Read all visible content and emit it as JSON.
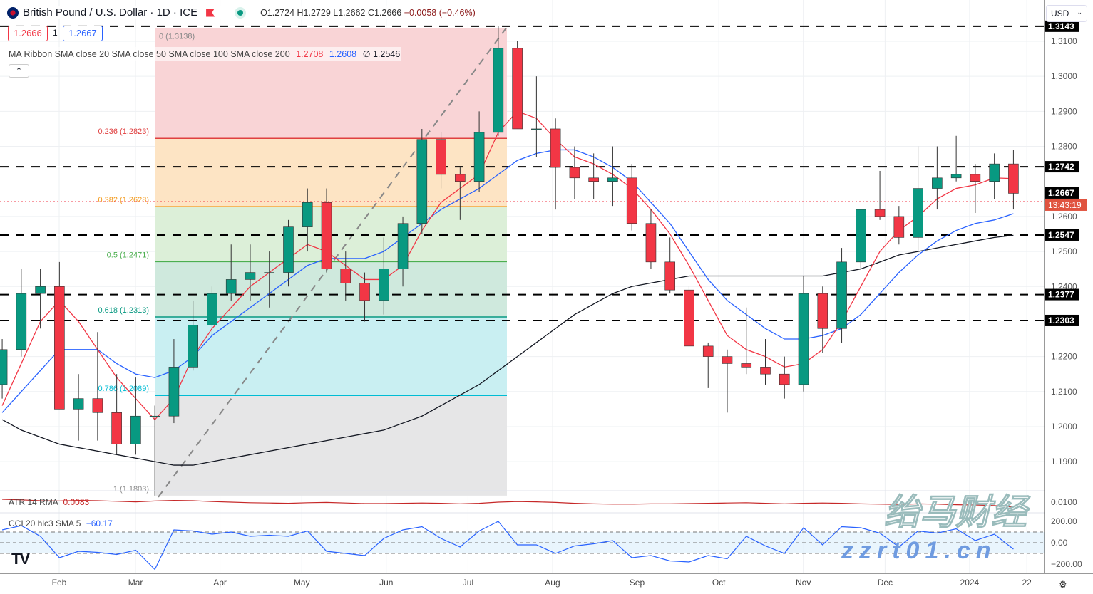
{
  "header": {
    "symbol": "British Pound / U.S. Dollar · 1D · ICE",
    "open": "O1.2724",
    "high": "H1.2729",
    "low": "L1.2662",
    "close": "C1.2666",
    "change": "−0.0058 (−0.46%)"
  },
  "bid": "1.2666",
  "spread": "1",
  "ask": "1.2667",
  "ma_legend": {
    "label": "MA Ribbon SMA close 20 SMA close 50 SMA close 100 SMA close 200",
    "v1": "1.2708",
    "v2": "1.2608",
    "v3": "∅ 1.2546"
  },
  "atr_legend": {
    "label": "ATR 14 RMA",
    "value": "0.0083"
  },
  "cci_legend": {
    "label": "CCI 20 hlc3 SMA 5",
    "value": "−60.17"
  },
  "currency": "USD",
  "countdown": "13:43:19",
  "watermark": {
    "cn": "绐马财经",
    "url": "zzrt01.cn"
  },
  "colors": {
    "up": "#089981",
    "down": "#f23645",
    "sma20": "#f23645",
    "sma50": "#2962ff",
    "sma200": "#131722",
    "countdown_bg": "#e0533f"
  },
  "chart_data": {
    "type": "candlestick",
    "ylim": [
      1.178,
      1.316
    ],
    "y_ticks": [
      "1.3100",
      "1.3000",
      "1.2900",
      "1.2800",
      "1.2600",
      "1.2500",
      "1.2400",
      "1.2200",
      "1.2100",
      "1.2000",
      "1.1900"
    ],
    "x_ticks": [
      [
        "Feb",
        "2023-02-01"
      ],
      [
        "Mar",
        "2023-03-01"
      ],
      [
        "Apr",
        "2023-04-01"
      ],
      [
        "May",
        "2023-05-01"
      ],
      [
        "Jun",
        "2023-06-01"
      ],
      [
        "Jul",
        "2023-07-01"
      ],
      [
        "Aug",
        "2023-08-01"
      ],
      [
        "Sep",
        "2023-09-01"
      ],
      [
        "Oct",
        "2023-10-01"
      ],
      [
        "Nov",
        "2023-11-01"
      ],
      [
        "Dec",
        "2023-12-01"
      ],
      [
        "2024",
        "2024-01-01"
      ],
      [
        "22",
        "2024-01-22"
      ]
    ],
    "candles": [
      [
        "2023-01-09",
        1.212,
        1.225,
        1.208,
        1.222
      ],
      [
        "2023-01-16",
        1.222,
        1.245,
        1.22,
        1.238
      ],
      [
        "2023-01-23",
        1.238,
        1.245,
        1.228,
        1.24
      ],
      [
        "2023-01-30",
        1.24,
        1.247,
        1.205,
        1.205
      ],
      [
        "2023-02-06",
        1.205,
        1.215,
        1.196,
        1.208
      ],
      [
        "2023-02-13",
        1.208,
        1.227,
        1.196,
        1.204
      ],
      [
        "2023-02-20",
        1.204,
        1.215,
        1.192,
        1.195
      ],
      [
        "2023-02-27",
        1.195,
        1.214,
        1.192,
        1.203
      ],
      [
        "2023-03-06",
        1.203,
        1.206,
        1.1803,
        1.203
      ],
      [
        "2023-03-13",
        1.203,
        1.225,
        1.201,
        1.217
      ],
      [
        "2023-03-20",
        1.217,
        1.236,
        1.216,
        1.229
      ],
      [
        "2023-03-27",
        1.229,
        1.24,
        1.226,
        1.238
      ],
      [
        "2023-04-03",
        1.238,
        1.252,
        1.236,
        1.242
      ],
      [
        "2023-04-10",
        1.242,
        1.252,
        1.236,
        1.244
      ],
      [
        "2023-04-17",
        1.244,
        1.25,
        1.234,
        1.244
      ],
      [
        "2023-04-24",
        1.244,
        1.259,
        1.24,
        1.257
      ],
      [
        "2023-05-01",
        1.257,
        1.268,
        1.25,
        1.264
      ],
      [
        "2023-05-08",
        1.264,
        1.268,
        1.244,
        1.245
      ],
      [
        "2023-05-15",
        1.245,
        1.25,
        1.236,
        1.241
      ],
      [
        "2023-05-22",
        1.241,
        1.244,
        1.23,
        1.236
      ],
      [
        "2023-05-29",
        1.236,
        1.254,
        1.232,
        1.245
      ],
      [
        "2023-06-05",
        1.245,
        1.26,
        1.24,
        1.258
      ],
      [
        "2023-06-12",
        1.258,
        1.285,
        1.255,
        1.282
      ],
      [
        "2023-06-19",
        1.282,
        1.284,
        1.268,
        1.272
      ],
      [
        "2023-06-26",
        1.272,
        1.274,
        1.259,
        1.27
      ],
      [
        "2023-07-03",
        1.27,
        1.29,
        1.267,
        1.284
      ],
      [
        "2023-07-10",
        1.284,
        1.3143,
        1.283,
        1.308
      ],
      [
        "2023-07-17",
        1.308,
        1.31,
        1.285,
        1.285
      ],
      [
        "2023-07-24",
        1.285,
        1.3,
        1.277,
        1.285
      ],
      [
        "2023-07-31",
        1.285,
        1.288,
        1.262,
        1.274
      ],
      [
        "2023-08-07",
        1.274,
        1.28,
        1.265,
        1.271
      ],
      [
        "2023-08-14",
        1.271,
        1.278,
        1.265,
        1.27
      ],
      [
        "2023-08-21",
        1.27,
        1.28,
        1.263,
        1.271
      ],
      [
        "2023-08-28",
        1.271,
        1.275,
        1.256,
        1.258
      ],
      [
        "2023-09-04",
        1.258,
        1.262,
        1.245,
        1.247
      ],
      [
        "2023-09-11",
        1.247,
        1.254,
        1.238,
        1.239
      ],
      [
        "2023-09-18",
        1.239,
        1.24,
        1.223,
        1.223
      ],
      [
        "2023-09-25",
        1.223,
        1.224,
        1.211,
        1.22
      ],
      [
        "2023-10-02",
        1.22,
        1.222,
        1.204,
        1.218
      ],
      [
        "2023-10-09",
        1.218,
        1.234,
        1.215,
        1.217
      ],
      [
        "2023-10-16",
        1.217,
        1.225,
        1.212,
        1.215
      ],
      [
        "2023-10-23",
        1.215,
        1.22,
        1.208,
        1.212
      ],
      [
        "2023-10-30",
        1.212,
        1.243,
        1.21,
        1.238
      ],
      [
        "2023-11-06",
        1.238,
        1.24,
        1.221,
        1.228
      ],
      [
        "2023-11-13",
        1.228,
        1.251,
        1.224,
        1.247
      ],
      [
        "2023-11-20",
        1.247,
        1.262,
        1.245,
        1.262
      ],
      [
        "2023-11-27",
        1.262,
        1.273,
        1.259,
        1.26
      ],
      [
        "2023-12-04",
        1.26,
        1.263,
        1.252,
        1.254
      ],
      [
        "2023-12-11",
        1.254,
        1.28,
        1.25,
        1.268
      ],
      [
        "2023-12-18",
        1.268,
        1.28,
        1.262,
        1.271
      ],
      [
        "2023-12-25",
        1.271,
        1.283,
        1.27,
        1.272
      ],
      [
        "2024-01-01",
        1.272,
        1.275,
        1.261,
        1.27
      ],
      [
        "2024-01-08",
        1.27,
        1.278,
        1.265,
        1.275
      ],
      [
        "2024-01-15",
        1.275,
        1.279,
        1.262,
        1.2666
      ]
    ],
    "sma20": [
      1.206,
      1.218,
      1.23,
      1.236,
      1.23,
      1.222,
      1.214,
      1.208,
      1.202,
      1.208,
      1.22,
      1.228,
      1.234,
      1.24,
      1.244,
      1.248,
      1.252,
      1.25,
      1.246,
      1.242,
      1.242,
      1.246,
      1.256,
      1.264,
      1.268,
      1.272,
      1.284,
      1.29,
      1.288,
      1.282,
      1.277,
      1.275,
      1.272,
      1.268,
      1.262,
      1.255,
      1.246,
      1.236,
      1.226,
      1.222,
      1.22,
      1.217,
      1.218,
      1.222,
      1.23,
      1.24,
      1.25,
      1.256,
      1.26,
      1.265,
      1.268,
      1.269,
      1.271,
      1.2708
    ],
    "sma50": [
      1.204,
      1.21,
      1.216,
      1.222,
      1.222,
      1.222,
      1.218,
      1.215,
      1.214,
      1.216,
      1.22,
      1.226,
      1.23,
      1.234,
      1.238,
      1.242,
      1.246,
      1.248,
      1.248,
      1.248,
      1.25,
      1.254,
      1.258,
      1.262,
      1.265,
      1.268,
      1.272,
      1.276,
      1.278,
      1.279,
      1.279,
      1.277,
      1.274,
      1.27,
      1.264,
      1.258,
      1.25,
      1.242,
      1.236,
      1.232,
      1.228,
      1.225,
      1.225,
      1.226,
      1.228,
      1.232,
      1.238,
      1.244,
      1.249,
      1.253,
      1.256,
      1.258,
      1.259,
      1.2608
    ],
    "sma200": [
      1.202,
      1.199,
      1.197,
      1.195,
      1.194,
      1.193,
      1.192,
      1.191,
      1.19,
      1.189,
      1.189,
      1.19,
      1.191,
      1.192,
      1.193,
      1.194,
      1.195,
      1.196,
      1.197,
      1.198,
      1.199,
      1.201,
      1.203,
      1.206,
      1.209,
      1.212,
      1.216,
      1.22,
      1.224,
      1.228,
      1.232,
      1.235,
      1.238,
      1.24,
      1.241,
      1.242,
      1.243,
      1.243,
      1.243,
      1.243,
      1.243,
      1.243,
      1.243,
      1.243,
      1.244,
      1.245,
      1.247,
      1.249,
      1.25,
      1.251,
      1.252,
      1.253,
      1.254,
      1.2546
    ],
    "fib": [
      [
        "0 (1.3138)",
        1.3138
      ],
      [
        "0.236 (1.2823)",
        1.2823
      ],
      [
        "0.382 (1.2628)",
        1.2628
      ],
      [
        "0.5 (1.2471)",
        1.2471
      ],
      [
        "0.618 (1.2313)",
        1.2313
      ],
      [
        "0.786 (1.2089)",
        1.2089
      ],
      [
        "1 (1.1803)",
        1.1803
      ]
    ],
    "levels": [
      [
        "1.3143",
        1.3143
      ],
      [
        "1.2742",
        1.2742
      ],
      [
        "1.2547",
        1.2547
      ],
      [
        "1.2377",
        1.2377
      ],
      [
        "1.2303",
        1.2303
      ]
    ],
    "last_price": [
      "1.2667",
      1.2667
    ],
    "atr": [
      0.011,
      0.0108,
      0.0105,
      0.0104,
      0.0106,
      0.0105,
      0.0103,
      0.0101,
      0.0104,
      0.0106,
      0.0105,
      0.0102,
      0.01,
      0.0098,
      0.0097,
      0.0096,
      0.0098,
      0.0099,
      0.0097,
      0.0095,
      0.0095,
      0.0096,
      0.0097,
      0.0096,
      0.0094,
      0.0096,
      0.01,
      0.0102,
      0.0101,
      0.0099,
      0.0096,
      0.0094,
      0.0093,
      0.0093,
      0.0094,
      0.0094,
      0.0095,
      0.0096,
      0.0097,
      0.0098,
      0.0096,
      0.0094,
      0.0096,
      0.0097,
      0.0096,
      0.0094,
      0.0093,
      0.0092,
      0.0094,
      0.0093,
      0.0091,
      0.009,
      0.0088,
      0.0083
    ],
    "atr_ticks": [
      "0.0100"
    ],
    "cci": [
      120,
      160,
      60,
      -140,
      -80,
      -90,
      -110,
      -70,
      -250,
      120,
      110,
      80,
      100,
      60,
      70,
      60,
      110,
      -80,
      -100,
      -120,
      40,
      120,
      150,
      40,
      -40,
      110,
      200,
      -20,
      -20,
      -100,
      -30,
      -10,
      20,
      -140,
      -120,
      -170,
      -180,
      -120,
      -150,
      60,
      -30,
      -100,
      140,
      -20,
      150,
      140,
      90,
      -40,
      110,
      90,
      130,
      20,
      80,
      -60.17
    ],
    "cci_ticks": [
      "200.00",
      "0.00",
      "−200.00"
    ]
  }
}
